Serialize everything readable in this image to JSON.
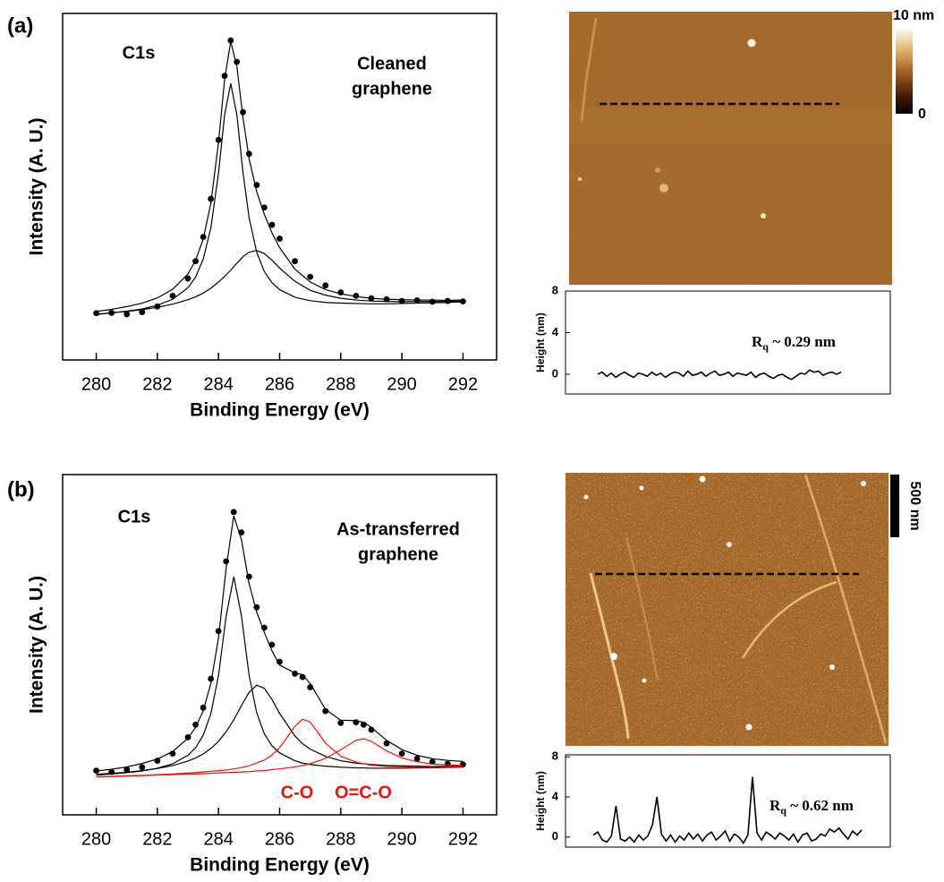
{
  "panel_labels": [
    "(a)",
    "(b)"
  ],
  "afm_images": [
    {
      "colorbar_labels": [
        "10 nm",
        "0"
      ]
    },
    {
      "scale_bar_label": "500 nm"
    }
  ],
  "chart_data": [
    {
      "type": "line",
      "x_label": "Binding Energy (eV)",
      "y_label": "Intensity (A. U.)",
      "x": [
        280,
        280.5,
        281,
        281.5,
        282,
        282.5,
        283,
        283.25,
        283.5,
        283.75,
        284,
        284.2,
        284.4,
        284.6,
        284.8,
        285,
        285.25,
        285.5,
        285.75,
        286,
        286.5,
        287,
        287.5,
        288,
        288.5,
        289,
        289.5,
        290,
        290.5,
        291,
        291.5,
        292
      ],
      "xlim": [
        278.9,
        293.1
      ],
      "xticks": [
        280,
        282,
        284,
        286,
        288,
        290,
        292
      ],
      "ylim": [
        0,
        100
      ],
      "annotations": [
        {
          "text": "C1s"
        },
        {
          "lines": [
            "Cleaned",
            "graphene"
          ]
        }
      ],
      "series": [
        {
          "color": "#000000",
          "marker": "dot",
          "values": [
            13.5,
            13.6,
            13.2,
            13.8,
            15.4,
            18.5,
            23.5,
            28.5,
            35.5,
            46.5,
            63.5,
            82,
            92.2,
            86,
            71.5,
            59.5,
            50.5,
            44,
            39,
            35,
            28.5,
            24,
            21.5,
            19.5,
            18.5,
            17.8,
            17.5,
            17.0,
            17.2,
            16.8,
            17.0,
            16.9
          ]
        },
        {
          "color": "#000000",
          "values": [
            14.0,
            14.6,
            15.4,
            16.4,
            17.9,
            20.4,
            24.8,
            28.7,
            34.9,
            45.2,
            62.7,
            81.0,
            91.9,
            84.8,
            70.0,
            58.1,
            48.6,
            42.0,
            36.7,
            32.4,
            26.2,
            22.5,
            20.3,
            19.1,
            18.3,
            17.8,
            17.5,
            17.4,
            17.3,
            17.3,
            17.2,
            17.3
          ]
        },
        {
          "color": "#000000",
          "values": [
            13.1,
            13.6,
            14.1,
            14.7,
            15.8,
            17.5,
            20.8,
            23.9,
            29.1,
            38.1,
            53.9,
            70.7,
            79.8,
            70.8,
            54.2,
            41.1,
            31.1,
            25.5,
            22.3,
            20.3,
            18.1,
            17.1,
            16.6,
            16.4,
            16.3,
            16.2,
            16.2,
            16.3,
            16.4,
            16.5,
            16.6,
            16.8
          ]
        },
        {
          "color": "#000000",
          "values": [
            13.2,
            13.6,
            14.0,
            14.5,
            15.2,
            16.1,
            17.4,
            18.2,
            19.3,
            20.7,
            22.5,
            24.1,
            25.9,
            27.9,
            29.8,
            31.1,
            31.6,
            30.7,
            28.8,
            26.5,
            22.7,
            20.1,
            18.7,
            17.8,
            17.3,
            17.0,
            16.9,
            16.8,
            16.9,
            16.9,
            16.9,
            17.0
          ]
        }
      ]
    },
    {
      "type": "line",
      "y_label": "Height (nm)",
      "ylim": [
        -1.9,
        8
      ],
      "yticks": [
        0,
        4,
        8
      ],
      "color": "#000000",
      "annotation": {
        "text": "R",
        "subscript": "q",
        "suffix": " ~ 0.29 nm"
      },
      "values": [
        0.0,
        0.2,
        -0.2,
        0.1,
        -0.3,
        0.0,
        0.2,
        -0.1,
        -0.3,
        0.1,
        0.0,
        -0.2,
        0.2,
        -0.1,
        0.1,
        -0.3,
        0.0,
        0.2,
        0.1,
        -0.2,
        0.3,
        -0.1,
        0.0,
        0.2,
        -0.2,
        0.1,
        0.3,
        -0.1,
        0.0,
        0.2,
        -0.2,
        0.1,
        0.0,
        -0.1,
        0.2,
        -0.3,
        0.0,
        0.1,
        -0.2,
        -0.4,
        -0.1,
        0.0,
        -0.3,
        -0.5,
        -0.2,
        0.1,
        0.0,
        0.4,
        0.2,
        0.3,
        -0.1,
        0.1,
        0.2,
        0.0,
        0.2
      ]
    },
    {
      "type": "line",
      "x_label": "Binding Energy (eV)",
      "y_label": "Intensity (A. U.)",
      "x": [
        280,
        280.5,
        281,
        281.5,
        282,
        282.5,
        283,
        283.25,
        283.5,
        283.75,
        284,
        284.25,
        284.5,
        284.75,
        285,
        285.25,
        285.5,
        285.75,
        286,
        286.5,
        286.75,
        287,
        287.5,
        288,
        288.5,
        288.75,
        289,
        289.5,
        290,
        290.5,
        291,
        291.5,
        292
      ],
      "xlim": [
        278.9,
        293.1
      ],
      "xticks": [
        280,
        282,
        284,
        286,
        288,
        290,
        292
      ],
      "ylim": [
        0,
        100
      ],
      "annotations": [
        {
          "text": "C1s"
        },
        {
          "lines": [
            "As-transferred",
            "graphene"
          ]
        },
        {
          "text": "C-O",
          "color": "#e8140c"
        },
        {
          "text": "O=C-O",
          "color": "#e8140c"
        }
      ],
      "series": [
        {
          "color": "#000000",
          "marker": "dot",
          "values": [
            13.0,
            12.6,
            13.3,
            14.0,
            15.9,
            18.0,
            22.8,
            26.5,
            31.5,
            40.0,
            54.0,
            74.5,
            89.0,
            83.0,
            70.0,
            61.0,
            55.0,
            50.0,
            45.0,
            41.5,
            40.5,
            37.5,
            30.5,
            27.0,
            27.2,
            26.5,
            25.0,
            21.0,
            18.0,
            16.5,
            15.6,
            15.0,
            14.8
          ]
        },
        {
          "color": "#000000",
          "values": [
            12.9,
            13.4,
            14.1,
            15.1,
            16.4,
            18.6,
            22.5,
            25.7,
            30.6,
            38.6,
            52.0,
            72.5,
            87.9,
            80.9,
            68.0,
            59.6,
            53.6,
            48.2,
            44.0,
            41.7,
            41.2,
            38.6,
            31.0,
            27.8,
            27.7,
            27.2,
            25.7,
            21.9,
            19.2,
            17.5,
            16.5,
            16.0,
            15.7
          ]
        },
        {
          "color": "#000000",
          "values": [
            11.7,
            12.0,
            12.4,
            12.9,
            13.7,
            15.0,
            17.5,
            19.7,
            23.4,
            29.7,
            40.9,
            58.4,
            70.0,
            58.5,
            41.1,
            30.0,
            23.8,
            20.3,
            18.2,
            15.9,
            15.2,
            14.8,
            14.3,
            14.0,
            13.8,
            13.8,
            13.7,
            13.7,
            13.7,
            13.8,
            13.8,
            13.9,
            14.0
          ]
        },
        {
          "color": "#000000",
          "values": [
            11.9,
            12.2,
            12.5,
            13.0,
            13.6,
            14.5,
            15.8,
            16.7,
            17.9,
            19.5,
            21.6,
            24.4,
            27.9,
            32.1,
            36.0,
            38.1,
            37.2,
            33.9,
            29.8,
            23.2,
            20.9,
            19.3,
            17.2,
            15.9,
            15.2,
            15.0,
            14.8,
            14.5,
            14.4,
            14.3,
            14.2,
            14.3,
            14.3
          ]
        },
        {
          "color": "#e8140c",
          "values": [
            11.2,
            11.3,
            11.5,
            11.6,
            11.8,
            12.0,
            12.3,
            12.4,
            12.6,
            12.8,
            13.0,
            13.2,
            13.5,
            13.9,
            14.4,
            15.2,
            16.1,
            17.6,
            19.7,
            26.0,
            28.1,
            27.3,
            21.1,
            17.2,
            15.5,
            15.0,
            14.6,
            14.2,
            14.1,
            14.0,
            13.9,
            14.0,
            14.0
          ]
        },
        {
          "color": "#e8140c",
          "values": [
            11.1,
            11.2,
            11.4,
            11.5,
            11.7,
            11.8,
            12.0,
            12.0,
            12.1,
            12.2,
            12.3,
            12.4,
            12.5,
            12.6,
            12.7,
            12.9,
            13.0,
            13.3,
            13.5,
            14.1,
            14.5,
            15.0,
            16.6,
            19.1,
            21.9,
            22.4,
            21.6,
            18.8,
            16.7,
            15.6,
            14.9,
            14.7,
            14.5
          ]
        }
      ]
    },
    {
      "type": "line",
      "y_label": "Height (nm)",
      "ylim": [
        -1,
        8.2
      ],
      "yticks": [
        0,
        4,
        8
      ],
      "color": "#000000",
      "annotation": {
        "text": "R",
        "subscript": "q",
        "suffix": " ~ 0.62 nm"
      },
      "values": [
        0.2,
        0.5,
        -0.3,
        -0.5,
        0.1,
        3.1,
        -0.2,
        -0.4,
        0.0,
        -0.5,
        0.2,
        -0.3,
        0.1,
        1.2,
        4.0,
        0.3,
        -0.4,
        0.2,
        -0.5,
        0.1,
        -0.3,
        0.4,
        -0.2,
        0.3,
        -0.4,
        0.2,
        0.5,
        -0.3,
        0.1,
        0.6,
        -0.4,
        0.3,
        0.0,
        -0.6,
        0.2,
        6.0,
        0.4,
        -0.3,
        0.5,
        0.2,
        -0.2,
        0.4,
        0.1,
        -0.3,
        0.3,
        -0.5,
        0.2,
        0.4,
        -0.4,
        -0.2,
        0.3,
        0.1,
        0.8,
        0.5,
        0.9,
        0.3,
        -0.2,
        0.6,
        0.2,
        0.7
      ]
    }
  ]
}
